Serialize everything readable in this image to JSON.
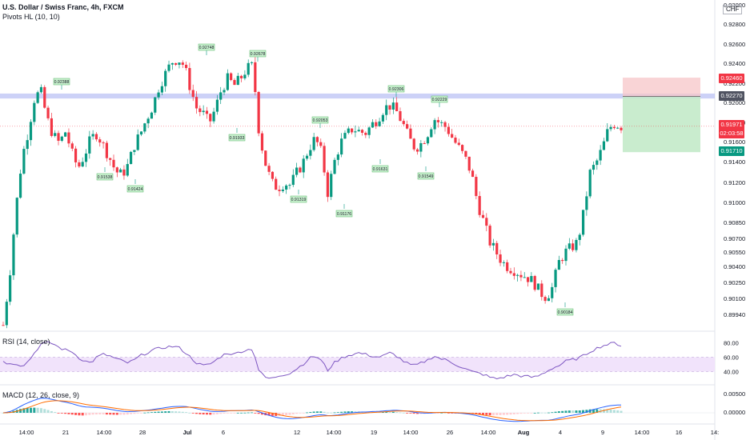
{
  "header": {
    "title": "U.S. Dollar / Swiss Franc, 4h, FXCM",
    "indicator": "Pivots HL (10, 10)",
    "currency": "CHF"
  },
  "chart_data": {
    "type": "candlestick",
    "symbol": "USDCHF",
    "timeframe": "4h",
    "price_axis": {
      "ticks": [
        "0.93000",
        "0.92800",
        "0.92600",
        "0.92400",
        "0.92200",
        "0.92000",
        "0.91800",
        "0.91600",
        "0.91400",
        "0.91200",
        "0.91000",
        "0.90850",
        "0.90700",
        "0.90550",
        "0.90400",
        "0.90250",
        "0.90100",
        "0.89940"
      ],
      "ylim": [
        0.899,
        0.9318
      ]
    },
    "time_axis": {
      "ticks": [
        "14:00",
        "21",
        "14:00",
        "28",
        "Jul",
        "6",
        "12",
        "14:00",
        "19",
        "14:00",
        "26",
        "14:00",
        "Aug",
        "4",
        "9",
        "14:00",
        "16",
        "14:"
      ]
    },
    "price_tags": {
      "target": "0.92460",
      "entry": "0.92270",
      "last": "0.91971",
      "countdown": "02:03:58",
      "stop": "0.91710"
    },
    "pivot_labels": [
      {
        "text": "0.92388",
        "kind": "high"
      },
      {
        "text": "0.91538",
        "kind": "low"
      },
      {
        "text": "0.91424",
        "kind": "low"
      },
      {
        "text": "0.92748",
        "kind": "high"
      },
      {
        "text": "0.92678",
        "kind": "high"
      },
      {
        "text": "0.91933",
        "kind": "low"
      },
      {
        "text": "0.92053",
        "kind": "high"
      },
      {
        "text": "0.91319",
        "kind": "low"
      },
      {
        "text": "0.91176",
        "kind": "low"
      },
      {
        "text": "0.92306",
        "kind": "high"
      },
      {
        "text": "0.91631",
        "kind": "low"
      },
      {
        "text": "0.92229",
        "kind": "high"
      },
      {
        "text": "0.91549",
        "kind": "low"
      },
      {
        "text": "0.90184",
        "kind": "low"
      }
    ],
    "price_path": [
      [
        0.8997,
        0.9045,
        0.9112,
        0.9165,
        0.9192,
        0.9225,
        0.9233,
        0.9205,
        0.9188,
        0.918,
        0.9192,
        0.917,
        0.9155,
        0.9168,
        0.9184,
        0.919,
        0.9178,
        0.9166,
        0.9152,
        0.9148,
        0.9158,
        0.9178,
        0.919,
        0.9205,
        0.9218,
        0.9238,
        0.925,
        0.9262,
        0.9265,
        0.9258,
        0.9235,
        0.9215,
        0.921,
        0.92,
        0.9215,
        0.9235,
        0.9245,
        0.9238,
        0.9245,
        0.9255,
        0.9258,
        0.919,
        0.916,
        0.914,
        0.9135,
        0.914,
        0.9138,
        0.915,
        0.916,
        0.9175,
        0.9185,
        0.917,
        0.913,
        0.916,
        0.918,
        0.9188,
        0.9195,
        0.9192,
        0.919,
        0.9198,
        0.9205,
        0.9215,
        0.9218,
        0.9212,
        0.92,
        0.9185,
        0.9175,
        0.918,
        0.919,
        0.9205,
        0.92,
        0.9196,
        0.9185,
        0.9175,
        0.9165,
        0.915,
        0.912,
        0.91,
        0.908,
        0.907,
        0.906,
        0.9055,
        0.9052,
        0.9048,
        0.9045,
        0.904,
        0.903,
        0.9025,
        0.9035,
        0.906,
        0.907,
        0.9075,
        0.908,
        0.911,
        0.915,
        0.916,
        0.9175,
        0.9195,
        0.92,
        0.9197
      ]
    ],
    "trade_setup": {
      "type": "long",
      "entry": 0.9227,
      "target": 0.9246,
      "stop": 0.9171
    },
    "resistance_zone": [
      0.9225,
      0.923
    ],
    "rsi": {
      "label": "RSI (14, close)",
      "ticks": [
        "80.00",
        "60.00",
        "40.00"
      ],
      "band": [
        40,
        60
      ],
      "values": [
        55,
        50,
        52,
        48,
        54,
        66,
        78,
        80,
        79,
        73,
        70,
        68,
        60,
        55,
        52,
        60,
        64,
        62,
        58,
        55,
        52,
        56,
        62,
        66,
        70,
        72,
        74,
        75,
        74,
        68,
        60,
        52,
        48,
        50,
        55,
        62,
        66,
        64,
        68,
        70,
        72,
        40,
        32,
        30,
        34,
        36,
        38,
        44,
        50,
        58,
        62,
        55,
        42,
        52,
        58,
        62,
        64,
        66,
        64,
        62,
        60,
        62,
        66,
        62,
        55,
        50,
        48,
        52,
        56,
        62,
        58,
        56,
        52,
        48,
        44,
        40,
        38,
        36,
        32,
        30,
        32,
        34,
        36,
        34,
        33,
        32,
        35,
        40,
        45,
        48,
        54,
        56,
        58,
        62,
        68,
        72,
        76,
        78,
        80,
        76
      ]
    },
    "macd": {
      "label": "MACD (12, 26, close, 9)",
      "ticks": [
        "0.00500",
        "0.00000"
      ],
      "zero_line": 0
    }
  }
}
